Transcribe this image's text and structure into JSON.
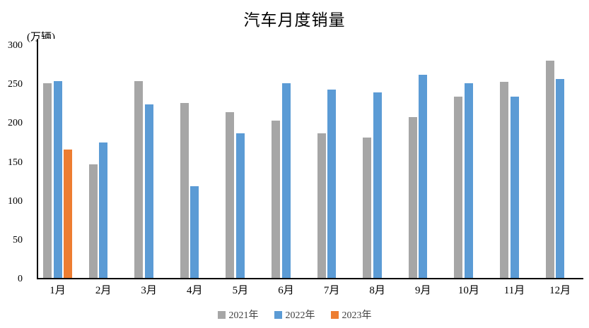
{
  "chart_data": {
    "type": "bar",
    "title": "汽车月度销量",
    "y_unit_label": "(万辆)",
    "xlabel": "",
    "ylabel": "万辆",
    "categories": [
      "1月",
      "2月",
      "3月",
      "4月",
      "5月",
      "6月",
      "7月",
      "8月",
      "9月",
      "10月",
      "11月",
      "12月"
    ],
    "series": [
      {
        "name": "2021年",
        "color": "#a6a6a6",
        "values": [
          250,
          146,
          253,
          225,
          213,
          202,
          186,
          180,
          207,
          233,
          252,
          279
        ]
      },
      {
        "name": "2022年",
        "color": "#5b9bd5",
        "values": [
          253,
          174,
          223,
          118,
          186,
          250,
          242,
          238,
          261,
          250,
          233,
          256
        ]
      },
      {
        "name": "2023年",
        "color": "#ed7d31",
        "values": [
          165,
          null,
          null,
          null,
          null,
          null,
          null,
          null,
          null,
          null,
          null,
          null
        ]
      }
    ],
    "ylim": [
      0,
      300
    ],
    "yticks": [
      0,
      50,
      100,
      150,
      200,
      250,
      300
    ],
    "grid": false,
    "legend_position": "bottom"
  },
  "colors": {
    "axis": "#000000",
    "background": "#ffffff",
    "series_2021": "#a6a6a6",
    "series_2022": "#5b9bd5",
    "series_2023": "#ed7d31"
  }
}
